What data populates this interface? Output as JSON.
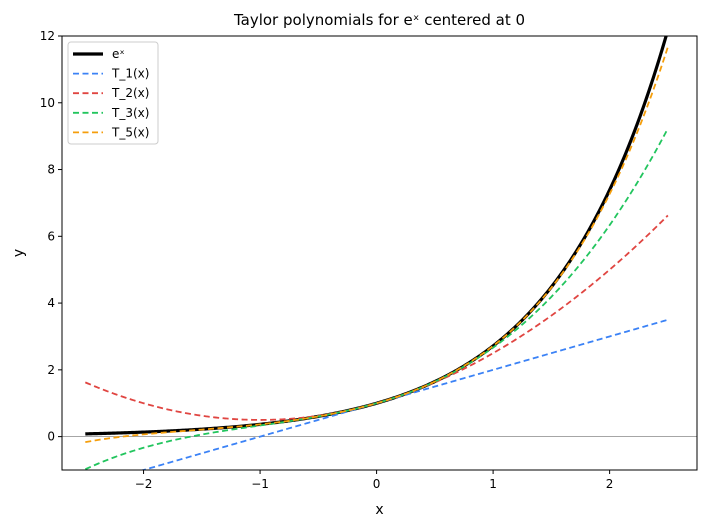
{
  "chart_data": {
    "type": "line",
    "title": "Taylor polynomials for eˣ centered at 0",
    "xlabel": "x",
    "ylabel": "y",
    "xlim": [
      -2.7,
      2.75
    ],
    "ylim": [
      -1,
      12
    ],
    "x_ticks": [
      -2,
      -1,
      0,
      1,
      2
    ],
    "y_ticks": [
      0,
      2,
      4,
      6,
      8,
      10,
      12
    ],
    "x_tick_labels": [
      "−2",
      "−1",
      "0",
      "1",
      "2"
    ],
    "y_tick_labels": [
      "0",
      "2",
      "4",
      "6",
      "8",
      "10",
      "12"
    ],
    "x_domain": [
      -2.5,
      2.5
    ],
    "horizontal_reference_line": 0,
    "legend_position": "upper-left",
    "series": [
      {
        "name": "eˣ",
        "function": "exp",
        "color": "#000000",
        "style": "solid",
        "width": "thick"
      },
      {
        "name": "T_1(x)",
        "function": "taylor_1",
        "color": "#3b82f6",
        "style": "dashed",
        "width": "normal"
      },
      {
        "name": "T_2(x)",
        "function": "taylor_2",
        "color": "#e04541",
        "style": "dashed",
        "width": "normal"
      },
      {
        "name": "T_3(x)",
        "function": "taylor_3",
        "color": "#22c55e",
        "style": "dashed",
        "width": "normal"
      },
      {
        "name": "T_5(x)",
        "function": "taylor_5",
        "color": "#f59e0b",
        "style": "dashed",
        "width": "normal"
      }
    ]
  }
}
